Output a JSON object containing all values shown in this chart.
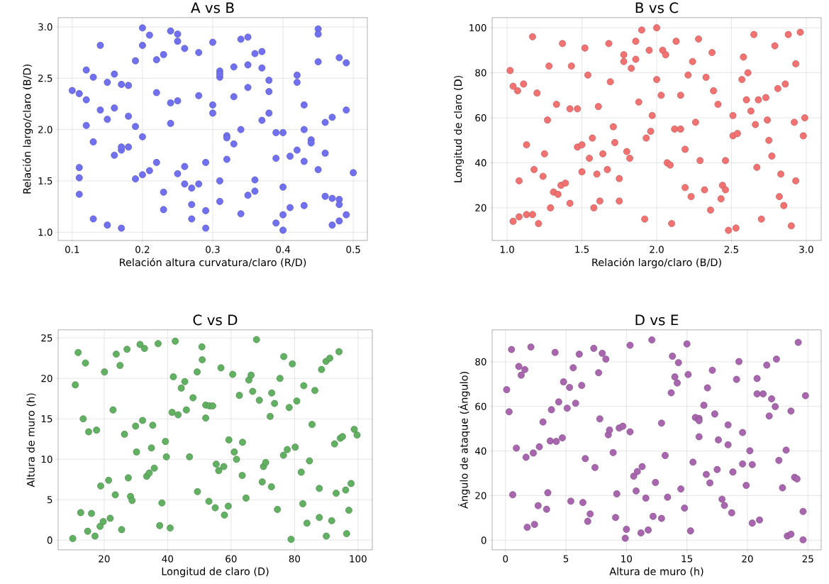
{
  "chart_data": [
    {
      "type": "scatter",
      "title": "A vs B",
      "xlabel": "Relación altura curvatura/claro (R/D)",
      "ylabel": "Relación largo/claro (B/D)",
      "color": "#7070f0",
      "grid": true,
      "xlim": [
        0.08,
        0.52
      ],
      "ylim": [
        0.92,
        3.09
      ],
      "xticks": [
        0.1,
        0.2,
        0.3,
        0.4,
        0.5
      ],
      "yticks": [
        {
          "value": 1.0,
          "label": "1.0"
        },
        1.5,
        {
          "value": 2.0,
          "label": "2.0"
        },
        2.5,
        {
          "value": 3.0,
          "label": "3.0"
        }
      ],
      "x": [
        0.2,
        0.21,
        0.14,
        0.2,
        0.24,
        0.25,
        0.25,
        0.26,
        0.28,
        0.3,
        0.19,
        0.22,
        0.23,
        0.34,
        0.35,
        0.36,
        0.37,
        0.12,
        0.13,
        0.16,
        0.15,
        0.17,
        0.18,
        0.1,
        0.11,
        0.12,
        0.14,
        0.16,
        0.15,
        0.18,
        0.12,
        0.19,
        0.2,
        0.13,
        0.16,
        0.17,
        0.17,
        0.18,
        0.11,
        0.11,
        0.11,
        0.13,
        0.15,
        0.17,
        0.19,
        0.2,
        0.21,
        0.22,
        0.22,
        0.24,
        0.25,
        0.24,
        0.23,
        0.23,
        0.25,
        0.26,
        0.26,
        0.27,
        0.28,
        0.27,
        0.27,
        0.29,
        0.29,
        0.29,
        0.28,
        0.3,
        0.3,
        0.31,
        0.31,
        0.31,
        0.33,
        0.35,
        0.37,
        0.38,
        0.38,
        0.33,
        0.35,
        0.38,
        0.37,
        0.32,
        0.32,
        0.33,
        0.34,
        0.32,
        0.31,
        0.31,
        0.34,
        0.35,
        0.36,
        0.36,
        0.39,
        0.4,
        0.39,
        0.4,
        0.39,
        0.4,
        0.4,
        0.41,
        0.41,
        0.42,
        0.42,
        0.42,
        0.43,
        0.43,
        0.43,
        0.43,
        0.44,
        0.44,
        0.45,
        0.45,
        0.45,
        0.45,
        0.46,
        0.46,
        0.47,
        0.46,
        0.47,
        0.48,
        0.48,
        0.47,
        0.48,
        0.48,
        0.49,
        0.49,
        0.49,
        0.5
      ],
      "values": [
        2.99,
        2.92,
        2.82,
        2.82,
        2.96,
        2.93,
        2.86,
        2.79,
        2.75,
        2.85,
        2.67,
        2.68,
        2.73,
        2.88,
        2.9,
        2.74,
        2.76,
        2.58,
        2.51,
        2.54,
        2.46,
        2.44,
        2.43,
        2.38,
        2.35,
        2.29,
        2.19,
        2.21,
        2.1,
        2.13,
        2.04,
        2.03,
        1.93,
        1.88,
        1.75,
        1.8,
        1.83,
        1.83,
        1.63,
        1.53,
        1.37,
        1.13,
        1.07,
        1.04,
        1.52,
        1.56,
        1.6,
        1.68,
        2.36,
        2.26,
        2.28,
        2.06,
        1.39,
        1.22,
        1.57,
        1.64,
        1.47,
        1.43,
        1.47,
        1.27,
        1.13,
        1.68,
        1.21,
        1.04,
        2.33,
        2.24,
        2.16,
        2.57,
        2.51,
        2.54,
        2.61,
        2.63,
        2.6,
        2.48,
        2.37,
        2.32,
        2.41,
        2.16,
        2.09,
        1.94,
        1.92,
        1.86,
        2.0,
        1.71,
        1.5,
        1.3,
        1.18,
        1.36,
        1.4,
        1.51,
        1.97,
        1.97,
        1.72,
        1.44,
        1.09,
        1.17,
        1.02,
        1.24,
        1.74,
        1.8,
        2.53,
        2.46,
        2.24,
        2.0,
        1.69,
        1.26,
        1.9,
        1.87,
        2.98,
        2.93,
        2.66,
        1.61,
        1.77,
        2.07,
        2.12,
        1.35,
        1.33,
        1.32,
        1.27,
        1.07,
        1.11,
        2.7,
        2.65,
        2.19,
        1.17,
        1.58
      ]
    },
    {
      "type": "scatter",
      "title": "B vs C",
      "xlabel": "Relación largo/claro (B/D)",
      "ylabel": "Longitud de claro (D)",
      "color": "#f27272",
      "grid": true,
      "xlim": [
        0.9,
        3.1
      ],
      "ylim": [
        5.5,
        104.5
      ],
      "xticks": [
        {
          "value": 1.0,
          "label": "1.0"
        },
        1.5,
        {
          "value": 2.0,
          "label": "2.0"
        },
        2.5,
        {
          "value": 3.0,
          "label": "3.0"
        }
      ],
      "yticks": [
        20,
        40,
        60,
        80,
        100
      ],
      "x": [
        1.02,
        1.04,
        1.07,
        1.11,
        1.17,
        1.28,
        1.2,
        1.33,
        1.37,
        1.43,
        1.42,
        1.47,
        1.27,
        1.13,
        1.25,
        1.18,
        1.24,
        1.08,
        1.31,
        1.34,
        1.36,
        1.39,
        1.04,
        1.08,
        1.13,
        1.17,
        1.21,
        1.29,
        1.42,
        1.52,
        1.54,
        1.68,
        1.69,
        1.47,
        1.5,
        1.5,
        1.55,
        1.57,
        1.61,
        1.6,
        1.64,
        1.67,
        1.62,
        1.58,
        1.71,
        1.72,
        1.75,
        1.75,
        1.78,
        1.78,
        1.83,
        1.86,
        1.86,
        1.9,
        1.88,
        1.95,
        2.0,
        2.0,
        2.03,
        1.97,
        1.96,
        1.93,
        1.8,
        1.82,
        1.92,
        2.04,
        2.06,
        2.13,
        2.1,
        2.07,
        2.09,
        2.12,
        2.16,
        2.16,
        2.19,
        2.21,
        2.24,
        2.28,
        2.26,
        2.19,
        2.23,
        2.29,
        2.33,
        2.32,
        2.36,
        2.37,
        2.38,
        2.41,
        2.43,
        2.44,
        2.46,
        2.46,
        2.48,
        2.51,
        2.51,
        2.54,
        2.53,
        2.58,
        2.57,
        2.61,
        2.6,
        2.63,
        2.65,
        2.66,
        2.67,
        2.68,
        2.7,
        2.73,
        2.74,
        2.75,
        2.77,
        2.79,
        2.81,
        2.86,
        2.83,
        2.82,
        2.85,
        2.88,
        2.93,
        2.92,
        2.93,
        2.9,
        2.96,
        2.98,
        2.99
      ],
      "values": [
        81,
        74,
        72,
        75,
        96,
        83,
        71,
        66,
        93,
        83,
        64,
        64,
        59,
        48,
        44,
        37,
        34,
        32,
        27,
        26,
        30,
        31,
        14,
        16,
        17,
        17,
        13,
        20,
        22,
        91,
        79,
        93,
        76,
        47,
        48,
        36,
        42,
        51,
        65,
        35,
        44,
        37,
        23,
        20,
        56,
        49,
        33,
        23,
        85,
        88,
        82,
        86,
        94,
        99,
        67,
        90,
        100,
        77,
        70,
        61,
        54,
        51,
        45,
        42,
        15,
        90,
        88,
        94,
        13,
        40,
        39,
        55,
        55,
        70,
        46,
        79,
        85,
        95,
        58,
        29,
        25,
        41,
        78,
        28,
        19,
        89,
        72,
        66,
        24,
        30,
        28,
        41,
        10,
        61,
        52,
        53,
        11,
        87,
        77,
        80,
        68,
        63,
        97,
        57,
        38,
        68,
        15,
        69,
        59,
        50,
        43,
        92,
        73,
        75,
        35,
        25,
        21,
        97,
        84,
        58,
        32,
        12,
        98,
        52,
        60
      ]
    },
    {
      "type": "scatter",
      "title": "C vs D",
      "xlabel": "Longitud de claro (D)",
      "ylabel": "Altura de muro (h)",
      "color": "#62b062",
      "grid": true,
      "xlim": [
        5.5,
        104.5
      ],
      "ylim": [
        -1.2,
        26
      ],
      "xticks": [
        20,
        40,
        60,
        80,
        100
      ],
      "yticks": [
        0,
        5,
        10,
        15,
        20,
        25
      ],
      "x": [
        10.1,
        10.9,
        11.8,
        14.1,
        13.4,
        15.1,
        17.6,
        12.6,
        14.8,
        16.0,
        17.1,
        18.9,
        18.7,
        19.7,
        21.9,
        21.4,
        20.1,
        22.8,
        23.5,
        23.8,
        25.0,
        25.5,
        26.4,
        27.2,
        27.6,
        28.3,
        28.8,
        29.9,
        30.2,
        31.3,
        32.7,
        32.1,
        33.4,
        34.2,
        35.8,
        34.9,
        35.3,
        37.0,
        38.2,
        37.5,
        39.3,
        39.6,
        40.8,
        42.4,
        41.8,
        41.4,
        43.3,
        44.3,
        45.4,
        45.9,
        46.9,
        48.0,
        49.3,
        50.8,
        50.9,
        49.4,
        52.0,
        53.2,
        54.2,
        52.0,
        53.0,
        55.0,
        55.3,
        56.1,
        57.7,
        56.8,
        57.9,
        59.1,
        59.3,
        60.5,
        61.0,
        61.7,
        62.6,
        63.6,
        63.5,
        64.7,
        65.6,
        66.3,
        66.8,
        68.0,
        68.9,
        69.8,
        70.2,
        70.9,
        72.3,
        72.7,
        72.8,
        73.7,
        74.6,
        75.4,
        76.6,
        76.5,
        77.7,
        78.3,
        78.9,
        79.3,
        80.2,
        80.7,
        82.1,
        82.6,
        82.9,
        83.9,
        84.7,
        85.5,
        86.4,
        87.8,
        87.8,
        88.5,
        89.9,
        91.1,
        90.0,
        91.7,
        92.6,
        93.1,
        94.0,
        94.4,
        95.1,
        96.1,
        97.1,
        96.4,
        97.8,
        98.8,
        99.7
      ],
      "values": [
        0.2,
        19.2,
        23.2,
        21.9,
        15.0,
        13.4,
        13.6,
        3.4,
        1.1,
        3.3,
        0.5,
        6.7,
        1.7,
        2.3,
        2.7,
        7.4,
        20.8,
        16.1,
        5.6,
        23.0,
        21.6,
        1.3,
        13.1,
        23.6,
        7.7,
        5.4,
        4.9,
        14.1,
        10.9,
        24.2,
        23.7,
        14.8,
        7.9,
        8.3,
        8.9,
        11.4,
        14.2,
        24.3,
        4.6,
        1.8,
        12.2,
        10.3,
        1.5,
        24.6,
        20.2,
        15.8,
        15.5,
        18.8,
        19.6,
        16.1,
        10.3,
        17.6,
        20.8,
        23.9,
        22.3,
        6.0,
        16.7,
        16.6,
        16.6,
        15.1,
        4.8,
        4.0,
        9.4,
        8.6,
        9.1,
        21.3,
        3.1,
        4.2,
        12.4,
        20.5,
        10.9,
        10.0,
        17.9,
        12.1,
        8.0,
        5.2,
        19.8,
        20.4,
        18.4,
        24.8,
        17.3,
        7.2,
        9.1,
        9.6,
        15.3,
        6.6,
        18.2,
        16.9,
        3.8,
        20.0,
        22.7,
        10.5,
        11.2,
        16.4,
        0.1,
        21.8,
        11.5,
        17.2,
        8.4,
        4.5,
        19.1,
        2.1,
        9.8,
        14.3,
        18.5,
        6.4,
        2.8,
        21.1,
        22.1,
        22.5,
        0.5,
        2.4,
        11.9,
        5.8,
        23.3,
        12.6,
        12.8,
        6.2,
        3.7,
        0.8,
        7.0,
        13.7,
        13.0
      ]
    },
    {
      "type": "scatter",
      "title": "D vs E",
      "xlabel": "Altura de muro (h)",
      "ylabel": "Ángulo de ataque (Ángulo)",
      "color": "#a866ae",
      "grid": true,
      "xlim": [
        -1.1,
        26.1
      ],
      "ylim": [
        -4.3,
        94.3
      ],
      "xticks": [
        0,
        5,
        10,
        15,
        20,
        25
      ],
      "yticks": [
        0,
        20,
        40,
        60,
        80
      ],
      "x": [
        0.1,
        0.3,
        0.5,
        0.9,
        0.6,
        1.1,
        1.3,
        1.6,
        1.7,
        1.8,
        2.1,
        2.3,
        2.4,
        2.8,
        2.7,
        3.1,
        3.4,
        3.5,
        3.7,
        3.8,
        4.1,
        4.2,
        4.4,
        4.7,
        4.8,
        5.1,
        5.3,
        5.4,
        5.6,
        5.8,
        6.1,
        6.3,
        6.4,
        6.6,
        6.8,
        7.0,
        7.3,
        7.4,
        7.7,
        7.8,
        8.0,
        8.3,
        8.5,
        8.6,
        8.9,
        9.1,
        9.2,
        9.4,
        9.7,
        9.9,
        10.0,
        10.3,
        10.3,
        10.6,
        10.9,
        11.3,
        10.8,
        11.2,
        11.6,
        11.8,
        12.1,
        12.2,
        12.4,
        12.9,
        12.9,
        13.2,
        13.4,
        13.7,
        13.8,
        14.0,
        14.3,
        14.2,
        14.5,
        14.8,
        15.0,
        15.1,
        15.3,
        15.5,
        15.7,
        16.0,
        16.0,
        16.0,
        16.4,
        16.6,
        16.7,
        16.9,
        17.1,
        17.3,
        17.5,
        17.6,
        17.9,
        18.1,
        18.4,
        18.4,
        18.7,
        18.8,
        19.1,
        19.3,
        19.6,
        19.6,
        19.9,
        20.2,
        20.4,
        20.4,
        20.8,
        20.8,
        21.0,
        21.3,
        21.6,
        21.8,
        22.0,
        22.3,
        22.4,
        22.6,
        22.9,
        23.2,
        23.3,
        23.6,
        23.6,
        23.9,
        24.1,
        24.2,
        24.6,
        24.6,
        24.8
      ],
      "values": [
        67.5,
        57.6,
        85.5,
        41.3,
        20.4,
        77.9,
        74.0,
        76.5,
        37.2,
        5.8,
        86.6,
        39.1,
        7.1,
        41.9,
        15.5,
        53.0,
        13.9,
        21.3,
        44.5,
        58.5,
        84.2,
        44.3,
        62.0,
        45.9,
        71.0,
        59.2,
        68.5,
        17.5,
        77.3,
        61.4,
        83.4,
        69.4,
        16.9,
        36.6,
        8.5,
        11.8,
        86.0,
        32.6,
        75.1,
        54.4,
        83.8,
        81.2,
        47.3,
        49.4,
        39.3,
        10.2,
        20.8,
        50.3,
        51.1,
        0.9,
        4.9,
        87.4,
        48.6,
        28.7,
        30.8,
        33.0,
        22.1,
        3.3,
        18.9,
        4.6,
        89.8,
        10.7,
        25.9,
        52.5,
        9.8,
        38.0,
        19.3,
        66.1,
        82.5,
        73.2,
        79.6,
        70.5,
        23.0,
        14.4,
        88.0,
        74.3,
        4.2,
        35.0,
        55.0,
        54.6,
        53.6,
        46.4,
        60.5,
        29.5,
        68.3,
        25.7,
        76.2,
        56.6,
        31.7,
        45.0,
        18.4,
        15.6,
        51.7,
        42.8,
        12.3,
        30.6,
        72.1,
        80.1,
        48.3,
        34.2,
        24.6,
        40.1,
        33.9,
        7.7,
        72.5,
        65.6,
        9.1,
        65.6,
        78.5,
        55.7,
        63.4,
        59.9,
        81.2,
        35.8,
        23.5,
        40.4,
        1.9,
        2.7,
        57.9,
        28.2,
        27.5,
        88.7,
        12.9,
        0.2,
        64.8
      ]
    }
  ]
}
